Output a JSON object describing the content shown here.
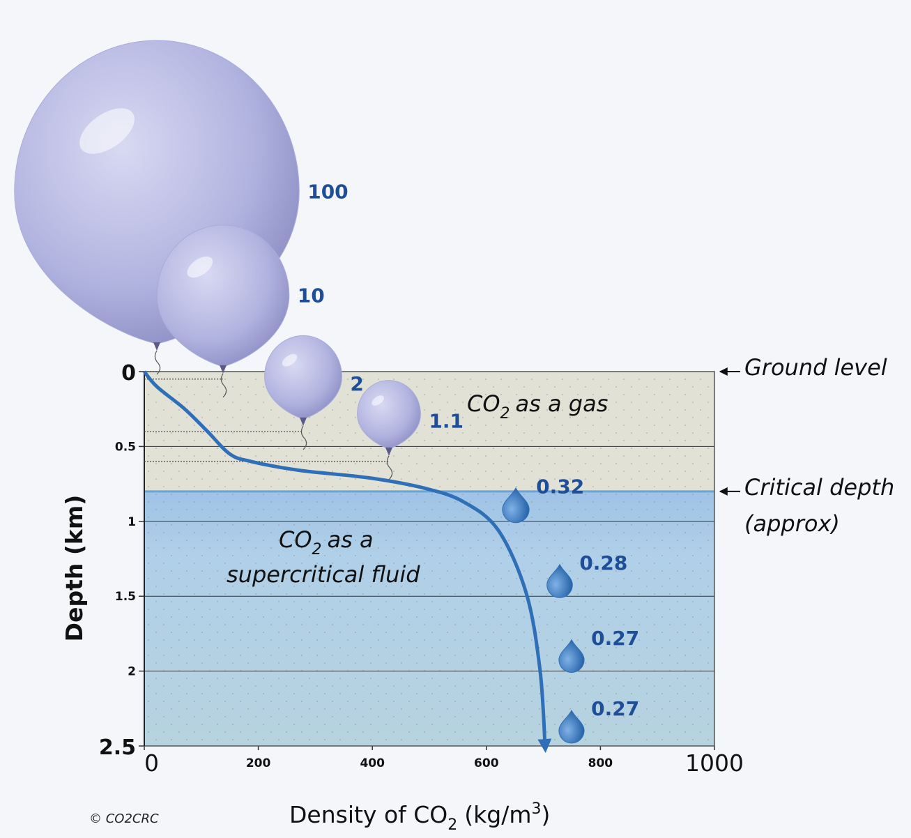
{
  "chart_data": {
    "type": "line",
    "x": [
      0,
      22,
      71,
      111,
      150,
      187,
      273,
      395,
      493,
      560,
      621,
      670,
      694,
      703
    ],
    "series": [
      {
        "color": "#2e6fb7",
        "values": [
          0,
          0.1,
          0.25,
          0.4,
          0.55,
          0.6,
          0.66,
          0.71,
          0.78,
          0.87,
          1.06,
          1.48,
          1.99,
          2.5
        ]
      }
    ],
    "xlim": [
      0,
      1000
    ],
    "xticks": [
      0,
      200,
      400,
      600,
      800,
      1000
    ],
    "ylim": [
      0,
      2.5
    ],
    "yticks": [
      0,
      0.5,
      1,
      1.5,
      2,
      2.5
    ],
    "y_inverted": true,
    "grid": true,
    "x_label": [
      "Density of CO",
      "2",
      "(kg/m",
      "3",
      ")"
    ],
    "y_label": "Depth (km)",
    "critical_depth": 0.8,
    "annotations": {
      "ground_level": "Ground level",
      "critical_depth": [
        "Critical depth",
        "(approx)"
      ],
      "gas": [
        "CO",
        "2",
        "as a gas"
      ],
      "supercritical": [
        "CO",
        "2",
        "as a",
        "supercritical fluid"
      ]
    },
    "balloons": {
      "volumes": [
        100,
        10,
        2,
        1.1
      ],
      "depths": [
        0,
        0.05,
        0.4,
        0.6
      ],
      "color": "#a9abdc"
    },
    "droplets": {
      "volumes": [
        0.32,
        0.28,
        0.27,
        0.27
      ],
      "depths": [
        1,
        1.5,
        2,
        2.5
      ],
      "color": "#2f6fb8"
    },
    "label_color": "#1f4e99",
    "credit": "© CO2CRC"
  }
}
